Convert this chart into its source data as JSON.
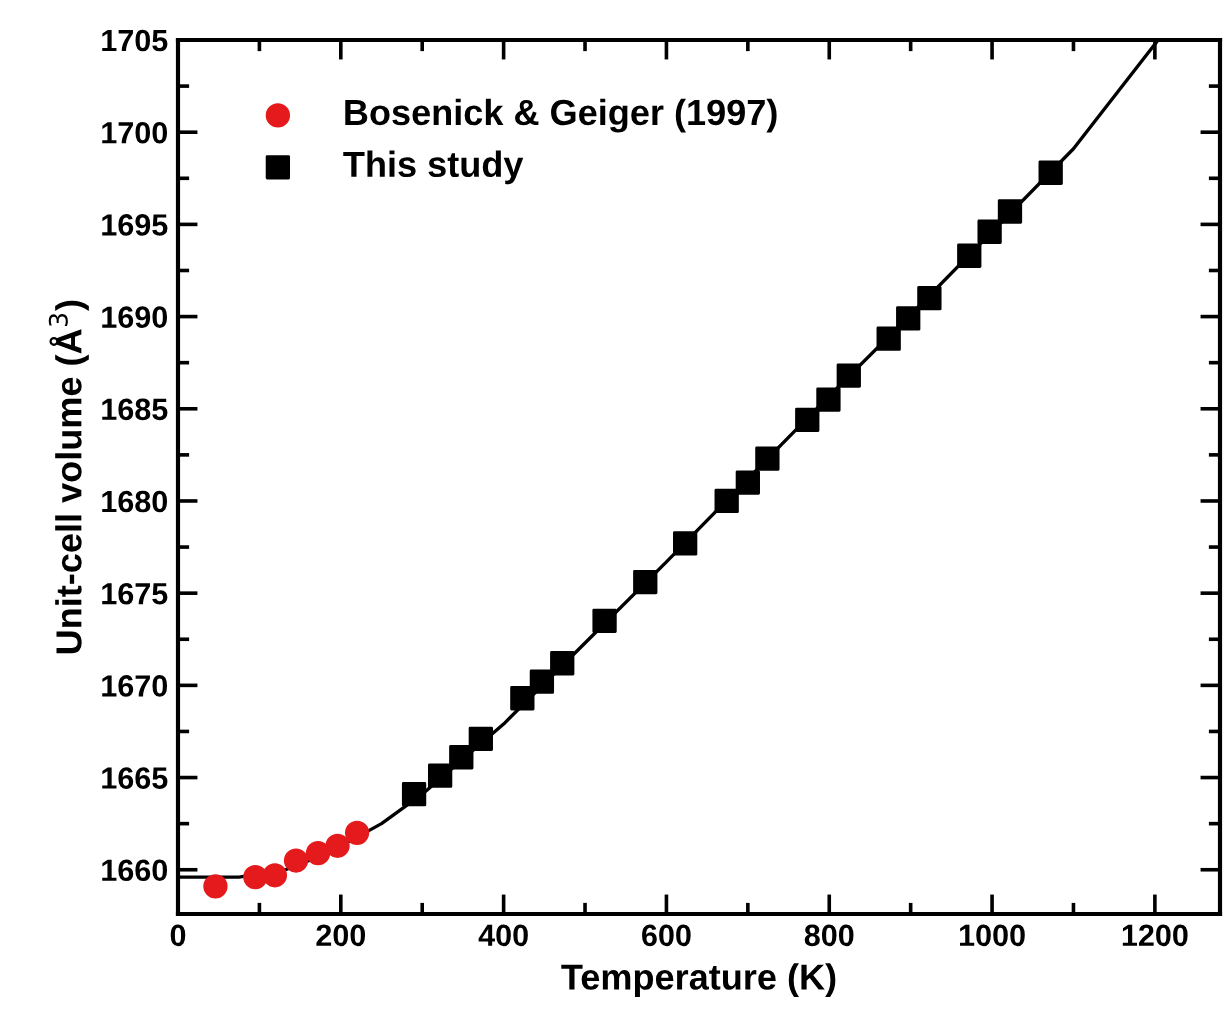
{
  "chart_data": {
    "type": "scatter",
    "xlabel": "Temperature (K)",
    "ylabel": "Unit-cell volume (Å$^{3}$)",
    "xlim": [
      0,
      1280
    ],
    "ylim": [
      1657.6,
      1705
    ],
    "xticks": [
      0,
      200,
      400,
      600,
      800,
      1000,
      1200
    ],
    "yticks": [
      1660,
      1665,
      1670,
      1675,
      1680,
      1685,
      1690,
      1695,
      1700,
      1705
    ],
    "grid": false,
    "legend": "top left",
    "series": [
      {
        "name": "Bosenick & Geiger (1997)",
        "color": "#e41a1c",
        "marker": "circle",
        "x": [
          46,
          95,
          119,
          145,
          172,
          196,
          220
        ],
        "values": [
          1659.1,
          1659.6,
          1659.7,
          1660.5,
          1660.9,
          1661.3,
          1662.0
        ]
      },
      {
        "name": "This study",
        "color": "#000000",
        "marker": "square",
        "x": [
          290,
          322,
          348,
          372,
          423,
          447,
          472,
          524,
          574,
          623,
          674,
          700,
          724,
          773,
          799,
          824,
          873,
          897,
          923,
          972,
          997,
          1022,
          1072
        ],
        "values": [
          1664.1,
          1665.1,
          1666.1,
          1667.1,
          1669.3,
          1670.2,
          1671.2,
          1673.5,
          1675.6,
          1677.7,
          1680.0,
          1681.0,
          1682.3,
          1684.4,
          1685.5,
          1686.8,
          1688.8,
          1689.9,
          1691.0,
          1693.3,
          1694.6,
          1695.7,
          1697.8
        ]
      },
      {
        "type": "line",
        "color": "#000000",
        "marker": "none",
        "line_style": "solid",
        "x": [
          0,
          50,
          75,
          132,
          184,
          250,
          300,
          400,
          500,
          600,
          700,
          800,
          900,
          1000,
          1100,
          1204
        ],
        "values": [
          1659.6,
          1659.6,
          1659.6,
          1660.0,
          1660.9,
          1662.5,
          1664.1,
          1667.9,
          1672.3,
          1676.7,
          1681.2,
          1685.7,
          1690.1,
          1694.6,
          1699.1,
          1705
        ]
      }
    ]
  }
}
